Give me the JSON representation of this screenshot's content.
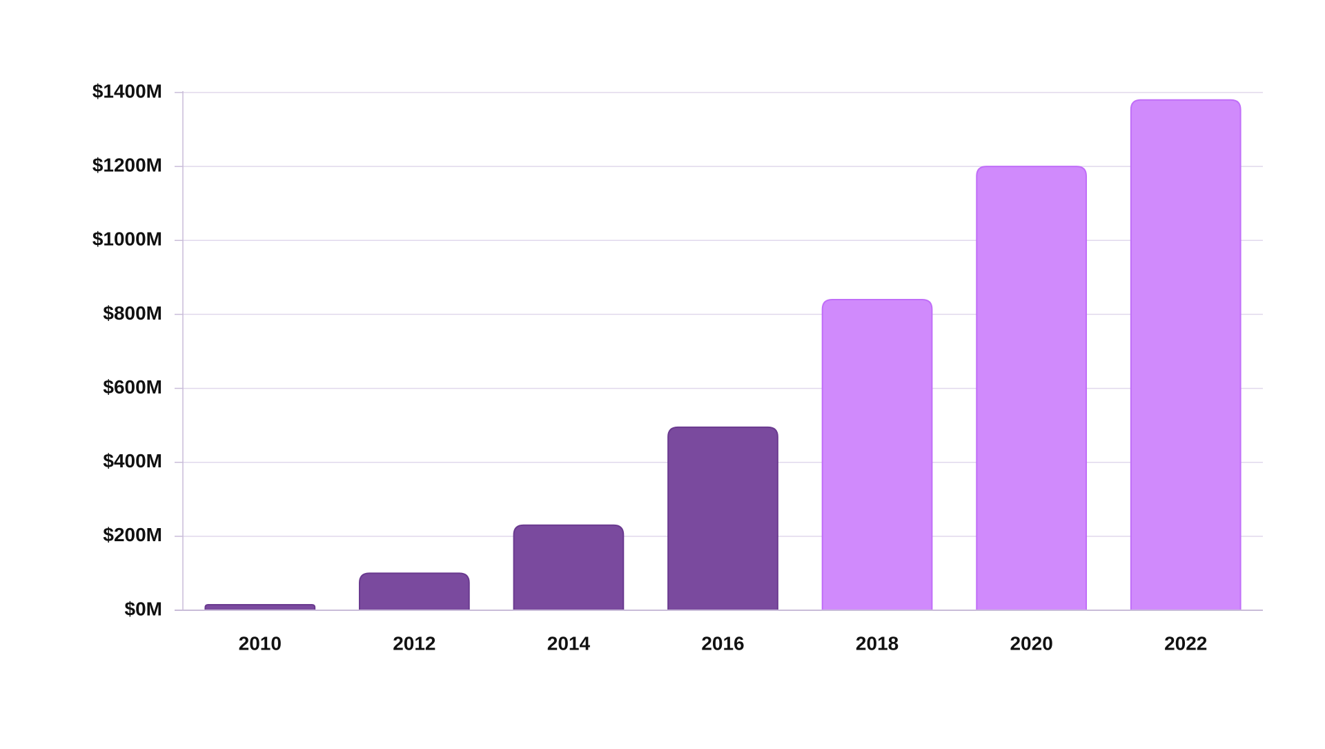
{
  "chart_data": {
    "type": "bar",
    "title": "",
    "xlabel": "",
    "ylabel": "",
    "categories": [
      "2010",
      "2012",
      "2014",
      "2016",
      "2018",
      "2020",
      "2022"
    ],
    "values": [
      15,
      100,
      230,
      495,
      840,
      1200,
      1380
    ],
    "ylim": [
      0,
      1400
    ],
    "yticks": [
      0,
      200,
      400,
      600,
      800,
      1000,
      1200,
      1400
    ],
    "ytick_labels": [
      "$0M",
      "$200M",
      "$400M",
      "$600M",
      "$800M",
      "$1000M",
      "$1200M",
      "$1400M"
    ],
    "grid": true,
    "legend": "none",
    "colors": {
      "dark_bar": "#7a4a9e",
      "dark_bar_edge": "#6a3a8f",
      "light_bar": "#d08afc",
      "light_bar_edge": "#c06ef8",
      "grid": "#e0d8ec",
      "axis": "#c8bcd8"
    },
    "bar_color_keys": [
      "dark_bar",
      "dark_bar",
      "dark_bar",
      "dark_bar",
      "light_bar",
      "light_bar",
      "light_bar"
    ]
  }
}
